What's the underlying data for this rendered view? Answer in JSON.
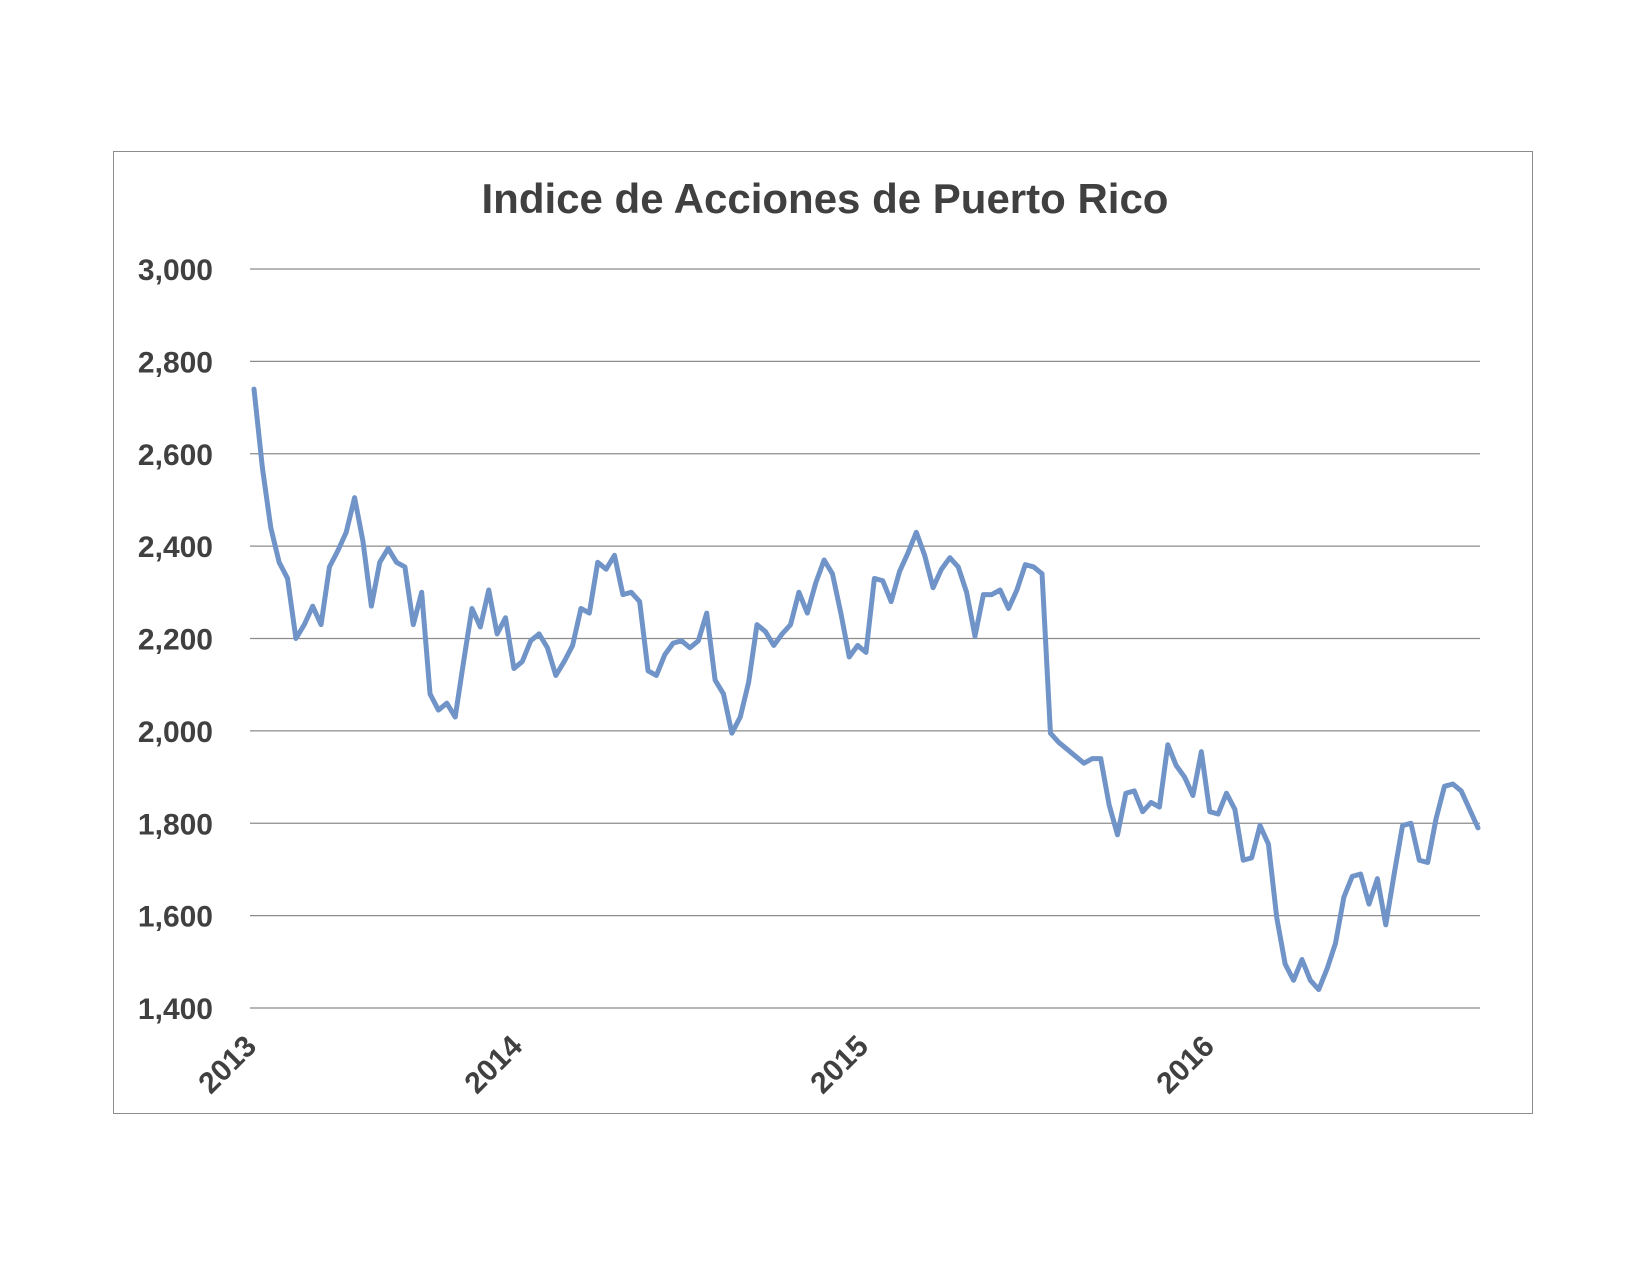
{
  "chart_data": {
    "type": "line",
    "title": "Indice de Acciones de Puerto Rico",
    "xlabel": "",
    "ylabel": "",
    "ylim": [
      1400,
      3000
    ],
    "y_ticks": [
      "1,400",
      "1,600",
      "1,800",
      "2,000",
      "2,200",
      "2,400",
      "2,600",
      "2,800",
      "3,000"
    ],
    "y_tick_values": [
      1400,
      1600,
      1800,
      2000,
      2200,
      2400,
      2600,
      2800,
      3000
    ],
    "x_tick_labels": [
      "2013",
      "2014",
      "2015",
      "2016"
    ],
    "x_tick_dates": [
      "2013-01",
      "2013-11",
      "2014-12",
      "2016-01"
    ],
    "x_range": [
      "2013-01",
      "2016-11"
    ],
    "grid": true,
    "legend": "none",
    "line_color": "#7094c8",
    "series": [
      {
        "values": [
          2740,
          2570,
          2440,
          2365,
          2330,
          2200,
          2230,
          2270,
          2230,
          2355,
          2390,
          2430,
          2505,
          2410,
          2270,
          2365,
          2395,
          2365,
          2355,
          2230,
          2300,
          2080,
          2045,
          2060,
          2030,
          2150,
          2265,
          2225,
          2305,
          2210,
          2245,
          2135,
          2150,
          2195,
          2210,
          2180,
          2120,
          2150,
          2185,
          2265,
          2255,
          2365,
          2350,
          2380,
          2295,
          2300,
          2280,
          2130,
          2120,
          2165,
          2190,
          2195,
          2180,
          2195,
          2255,
          2110,
          2080,
          1995,
          2030,
          2105,
          2230,
          2215,
          2185,
          2210,
          2230,
          2300,
          2255,
          2320,
          2370,
          2340,
          2255,
          2160,
          2185,
          2170,
          2330,
          2325,
          2280,
          2345,
          2385,
          2430,
          2380,
          2310,
          2350,
          2375,
          2355,
          2300,
          2205,
          2295,
          2295,
          2305,
          2265,
          2305,
          2360,
          2355,
          2340,
          1995,
          1975,
          1960,
          1945,
          1930,
          1940,
          1940,
          1840,
          1775,
          1865,
          1870,
          1825,
          1845,
          1835,
          1970,
          1925,
          1900,
          1860,
          1955,
          1825,
          1820,
          1865,
          1830,
          1720,
          1725,
          1795,
          1755,
          1595,
          1495,
          1460,
          1505,
          1460,
          1440,
          1485,
          1540,
          1640,
          1685,
          1690,
          1625,
          1680,
          1580,
          1690,
          1795,
          1800,
          1720,
          1715,
          1810,
          1880,
          1885,
          1870,
          1830,
          1790
        ]
      }
    ]
  }
}
